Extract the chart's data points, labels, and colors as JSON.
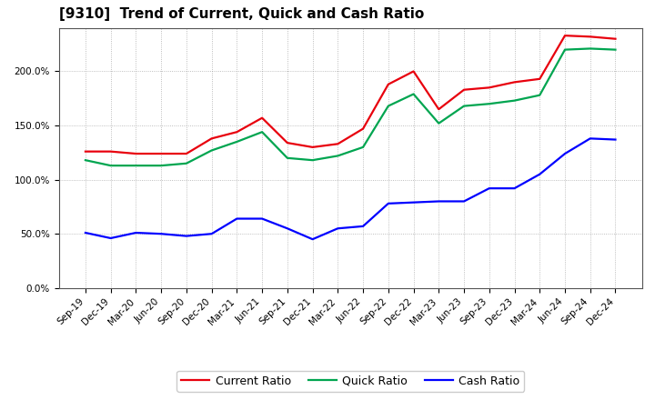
{
  "title": "[9310]  Trend of Current, Quick and Cash Ratio",
  "x_labels": [
    "Sep-19",
    "Dec-19",
    "Mar-20",
    "Jun-20",
    "Sep-20",
    "Dec-20",
    "Mar-21",
    "Jun-21",
    "Sep-21",
    "Dec-21",
    "Mar-22",
    "Jun-22",
    "Sep-22",
    "Dec-22",
    "Mar-23",
    "Jun-23",
    "Sep-23",
    "Dec-23",
    "Mar-24",
    "Jun-24",
    "Sep-24",
    "Dec-24"
  ],
  "current_ratio": [
    126,
    126,
    124,
    124,
    124,
    138,
    144,
    157,
    134,
    130,
    133,
    147,
    188,
    200,
    165,
    183,
    185,
    190,
    193,
    233,
    232,
    230
  ],
  "quick_ratio": [
    118,
    113,
    113,
    113,
    115,
    127,
    135,
    144,
    120,
    118,
    122,
    130,
    168,
    179,
    152,
    168,
    170,
    173,
    178,
    220,
    221,
    220
  ],
  "cash_ratio": [
    51,
    46,
    51,
    50,
    48,
    50,
    64,
    64,
    55,
    45,
    55,
    57,
    78,
    79,
    80,
    80,
    92,
    92,
    105,
    124,
    138,
    137
  ],
  "ylim": [
    0,
    240
  ],
  "yticks": [
    0,
    50,
    100,
    150,
    200
  ],
  "line_colors": {
    "current": "#e8000d",
    "quick": "#00a550",
    "cash": "#0000ff"
  },
  "line_width": 1.6,
  "bg_color": "#ffffff",
  "plot_bg_color": "#ffffff",
  "grid_color": "#888888",
  "legend_labels": [
    "Current Ratio",
    "Quick Ratio",
    "Cash Ratio"
  ],
  "title_fontsize": 11,
  "tick_fontsize": 7.5
}
